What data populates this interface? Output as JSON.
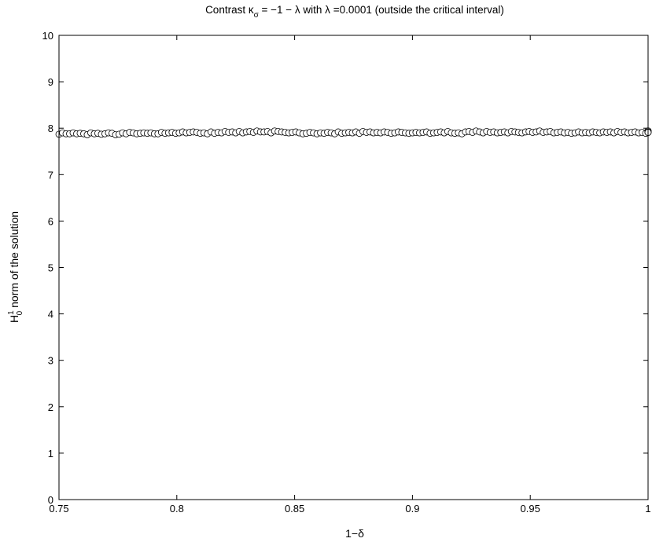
{
  "chart_data": {
    "type": "line",
    "title": {
      "prefix": "Contrast κ",
      "prefix_subscript": "σ",
      "suffix": " = −1 − λ with λ =0.0001 (outside the critical interval)"
    },
    "xlabel": "1−δ",
    "ylabel": {
      "base": "H",
      "superscript": "1",
      "subscript": "0",
      "rest": " norm of the solution"
    },
    "xlim": [
      0.75,
      1
    ],
    "ylim": [
      0,
      10
    ],
    "xticks": [
      "0.75",
      "0.8",
      "0.85",
      "0.9",
      "0.95",
      "1"
    ],
    "yticks": [
      "0",
      "1",
      "2",
      "3",
      "4",
      "5",
      "6",
      "7",
      "8",
      "9",
      "10"
    ],
    "grid": false,
    "legend": "none",
    "series": [
      {
        "marker": "circle",
        "color": "#000000",
        "x_start": 0.75,
        "x_end": 1,
        "x_step": 0.0015,
        "values": [
          7.87,
          7.9,
          7.88,
          7.88,
          7.9,
          7.88,
          7.89,
          7.88,
          7.86,
          7.9,
          7.88,
          7.89,
          7.87,
          7.88,
          7.9,
          7.89,
          7.86,
          7.87,
          7.9,
          7.88,
          7.91,
          7.9,
          7.88,
          7.89,
          7.9,
          7.89,
          7.9,
          7.88,
          7.88,
          7.91,
          7.89,
          7.9,
          7.91,
          7.89,
          7.9,
          7.92,
          7.9,
          7.91,
          7.92,
          7.91,
          7.89,
          7.9,
          7.88,
          7.92,
          7.89,
          7.91,
          7.9,
          7.93,
          7.91,
          7.92,
          7.9,
          7.93,
          7.9,
          7.92,
          7.93,
          7.91,
          7.94,
          7.92,
          7.92,
          7.93,
          7.9,
          7.94,
          7.93,
          7.92,
          7.91,
          7.9,
          7.91,
          7.92,
          7.9,
          7.88,
          7.89,
          7.91,
          7.9,
          7.88,
          7.9,
          7.89,
          7.91,
          7.9,
          7.88,
          7.92,
          7.89,
          7.9,
          7.91,
          7.9,
          7.92,
          7.89,
          7.93,
          7.91,
          7.92,
          7.9,
          7.91,
          7.9,
          7.92,
          7.91,
          7.89,
          7.9,
          7.92,
          7.91,
          7.9,
          7.89,
          7.9,
          7.91,
          7.9,
          7.91,
          7.92,
          7.89,
          7.9,
          7.91,
          7.92,
          7.9,
          7.93,
          7.9,
          7.89,
          7.9,
          7.88,
          7.92,
          7.93,
          7.91,
          7.94,
          7.92,
          7.9,
          7.93,
          7.91,
          7.92,
          7.9,
          7.91,
          7.92,
          7.9,
          7.93,
          7.92,
          7.91,
          7.9,
          7.92,
          7.93,
          7.91,
          7.92,
          7.94,
          7.91,
          7.92,
          7.93,
          7.9,
          7.91,
          7.92,
          7.9,
          7.91,
          7.89,
          7.9,
          7.92,
          7.9,
          7.91,
          7.9,
          7.92,
          7.91,
          7.9,
          7.92,
          7.91,
          7.92,
          7.9,
          7.93,
          7.91,
          7.92,
          7.9,
          7.91,
          7.92,
          7.9,
          7.91,
          7.89,
          7.92,
          7.93,
          7.91,
          7.92,
          7.93,
          7.94,
          7.92,
          7.93,
          7.91,
          7.92,
          7.94,
          7.92,
          7.91
        ]
      }
    ]
  }
}
